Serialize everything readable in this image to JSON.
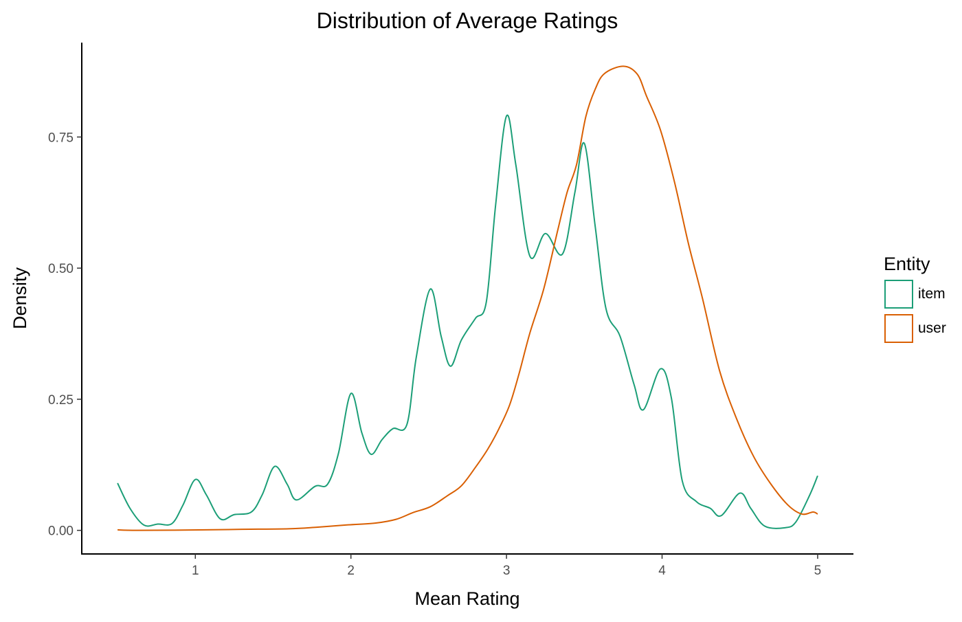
{
  "chart_data": {
    "type": "line",
    "title": "Distribution of Average Ratings",
    "xlabel": "Mean Rating",
    "ylabel": "Density",
    "xlim": [
      0.27,
      5.23
    ],
    "ylim": [
      -0.045,
      0.93
    ],
    "xticks": [
      1,
      2,
      3,
      4,
      5
    ],
    "xtick_labels": [
      "1",
      "2",
      "3",
      "4",
      "5"
    ],
    "yticks": [
      0,
      0.25,
      0.5,
      0.75
    ],
    "ytick_labels": [
      "0.00",
      "0.25",
      "0.50",
      "0.75"
    ],
    "grid": false,
    "legend": {
      "title": "Entity",
      "placement": "right"
    },
    "series": [
      {
        "name": "item",
        "color": "#1b9e77",
        "x": [
          0.5,
          0.58,
          0.67,
          0.76,
          0.85,
          0.92,
          1.0,
          1.07,
          1.16,
          1.25,
          1.36,
          1.43,
          1.51,
          1.59,
          1.65,
          1.77,
          1.85,
          1.92,
          2.0,
          2.07,
          2.13,
          2.2,
          2.27,
          2.36,
          2.42,
          2.51,
          2.58,
          2.64,
          2.71,
          2.8,
          2.87,
          2.93,
          3.0,
          3.06,
          3.15,
          3.25,
          3.36,
          3.44,
          3.5,
          3.57,
          3.64,
          3.73,
          3.82,
          3.88,
          3.99,
          4.06,
          4.13,
          4.22,
          4.31,
          4.38,
          4.5,
          4.57,
          4.66,
          4.79,
          4.86,
          4.95,
          5.0
        ],
        "y": [
          0.09,
          0.042,
          0.01,
          0.012,
          0.013,
          0.048,
          0.097,
          0.068,
          0.022,
          0.03,
          0.035,
          0.068,
          0.122,
          0.088,
          0.058,
          0.084,
          0.088,
          0.147,
          0.261,
          0.186,
          0.145,
          0.173,
          0.194,
          0.202,
          0.33,
          0.46,
          0.37,
          0.313,
          0.363,
          0.404,
          0.435,
          0.62,
          0.79,
          0.697,
          0.523,
          0.566,
          0.527,
          0.645,
          0.738,
          0.58,
          0.422,
          0.37,
          0.278,
          0.23,
          0.308,
          0.252,
          0.094,
          0.055,
          0.042,
          0.028,
          0.071,
          0.042,
          0.008,
          0.005,
          0.016,
          0.068,
          0.104
        ]
      },
      {
        "name": "user",
        "color": "#d95f02",
        "x": [
          0.5,
          0.63,
          1.07,
          1.3,
          1.6,
          1.78,
          1.96,
          2.16,
          2.29,
          2.4,
          2.51,
          2.62,
          2.71,
          2.8,
          2.88,
          2.95,
          3.02,
          3.08,
          3.15,
          3.24,
          3.33,
          3.39,
          3.45,
          3.51,
          3.57,
          3.63,
          3.75,
          3.84,
          3.9,
          3.99,
          4.08,
          4.17,
          4.26,
          4.37,
          4.48,
          4.59,
          4.7,
          4.81,
          4.9,
          4.97,
          5.0
        ],
        "y": [
          0.001,
          0.0,
          0.001,
          0.002,
          0.003,
          0.006,
          0.01,
          0.014,
          0.021,
          0.034,
          0.045,
          0.066,
          0.085,
          0.12,
          0.155,
          0.193,
          0.239,
          0.298,
          0.376,
          0.461,
          0.573,
          0.645,
          0.697,
          0.789,
          0.841,
          0.871,
          0.885,
          0.87,
          0.828,
          0.763,
          0.664,
          0.546,
          0.442,
          0.304,
          0.212,
          0.14,
          0.088,
          0.048,
          0.031,
          0.035,
          0.031
        ]
      }
    ]
  }
}
